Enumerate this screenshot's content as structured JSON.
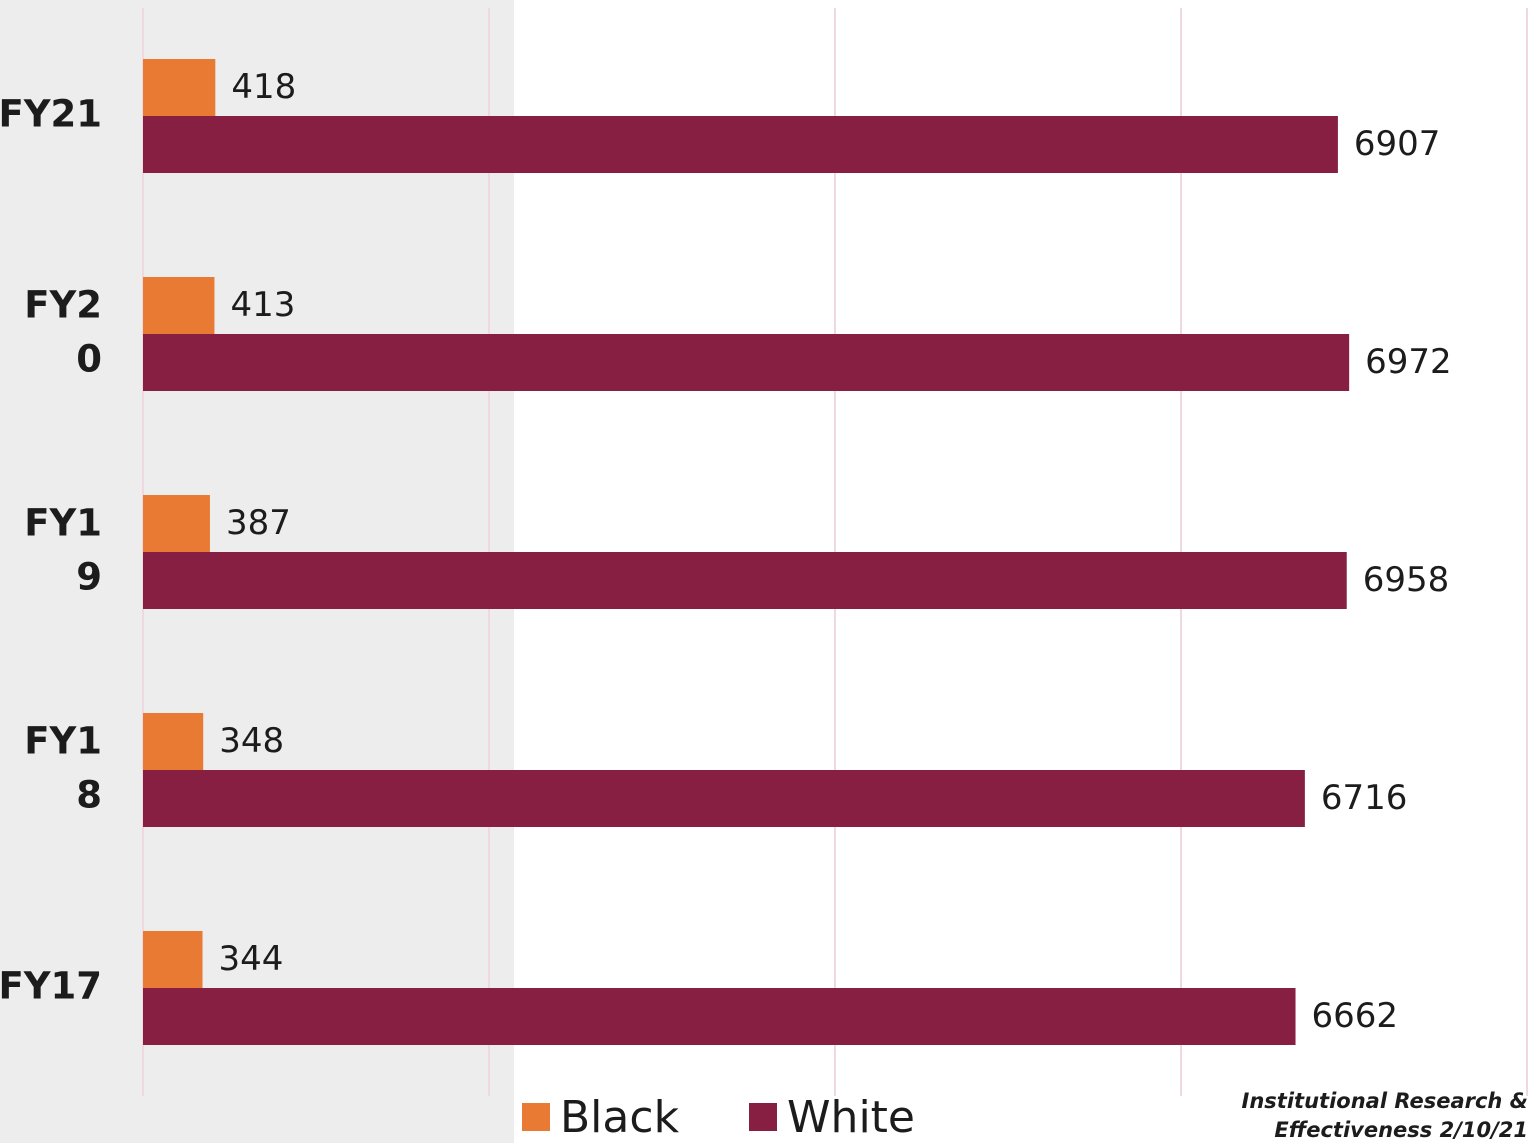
{
  "chart_data": {
    "type": "bar",
    "orientation": "horizontal",
    "categories": [
      [
        "FY21"
      ],
      [
        "FY2",
        "0"
      ],
      [
        "FY1",
        "9"
      ],
      [
        "FY1",
        "8"
      ],
      [
        "FY17"
      ]
    ],
    "series": [
      {
        "name": "Black",
        "color": "#E87A33",
        "values": [
          418,
          413,
          387,
          348,
          344
        ]
      },
      {
        "name": "White",
        "color": "#861F41",
        "values": [
          6907,
          6972,
          6958,
          6716,
          6662
        ]
      }
    ],
    "xlim": [
      0,
      8000
    ],
    "grid": true,
    "legend_position": "bottom"
  },
  "colors": {
    "grid": "#F0D8E0",
    "shaded_panel": "#EDEDED"
  },
  "credit": {
    "line1": "Institutional Research &",
    "line2": "Effectiveness 2/10/21"
  }
}
